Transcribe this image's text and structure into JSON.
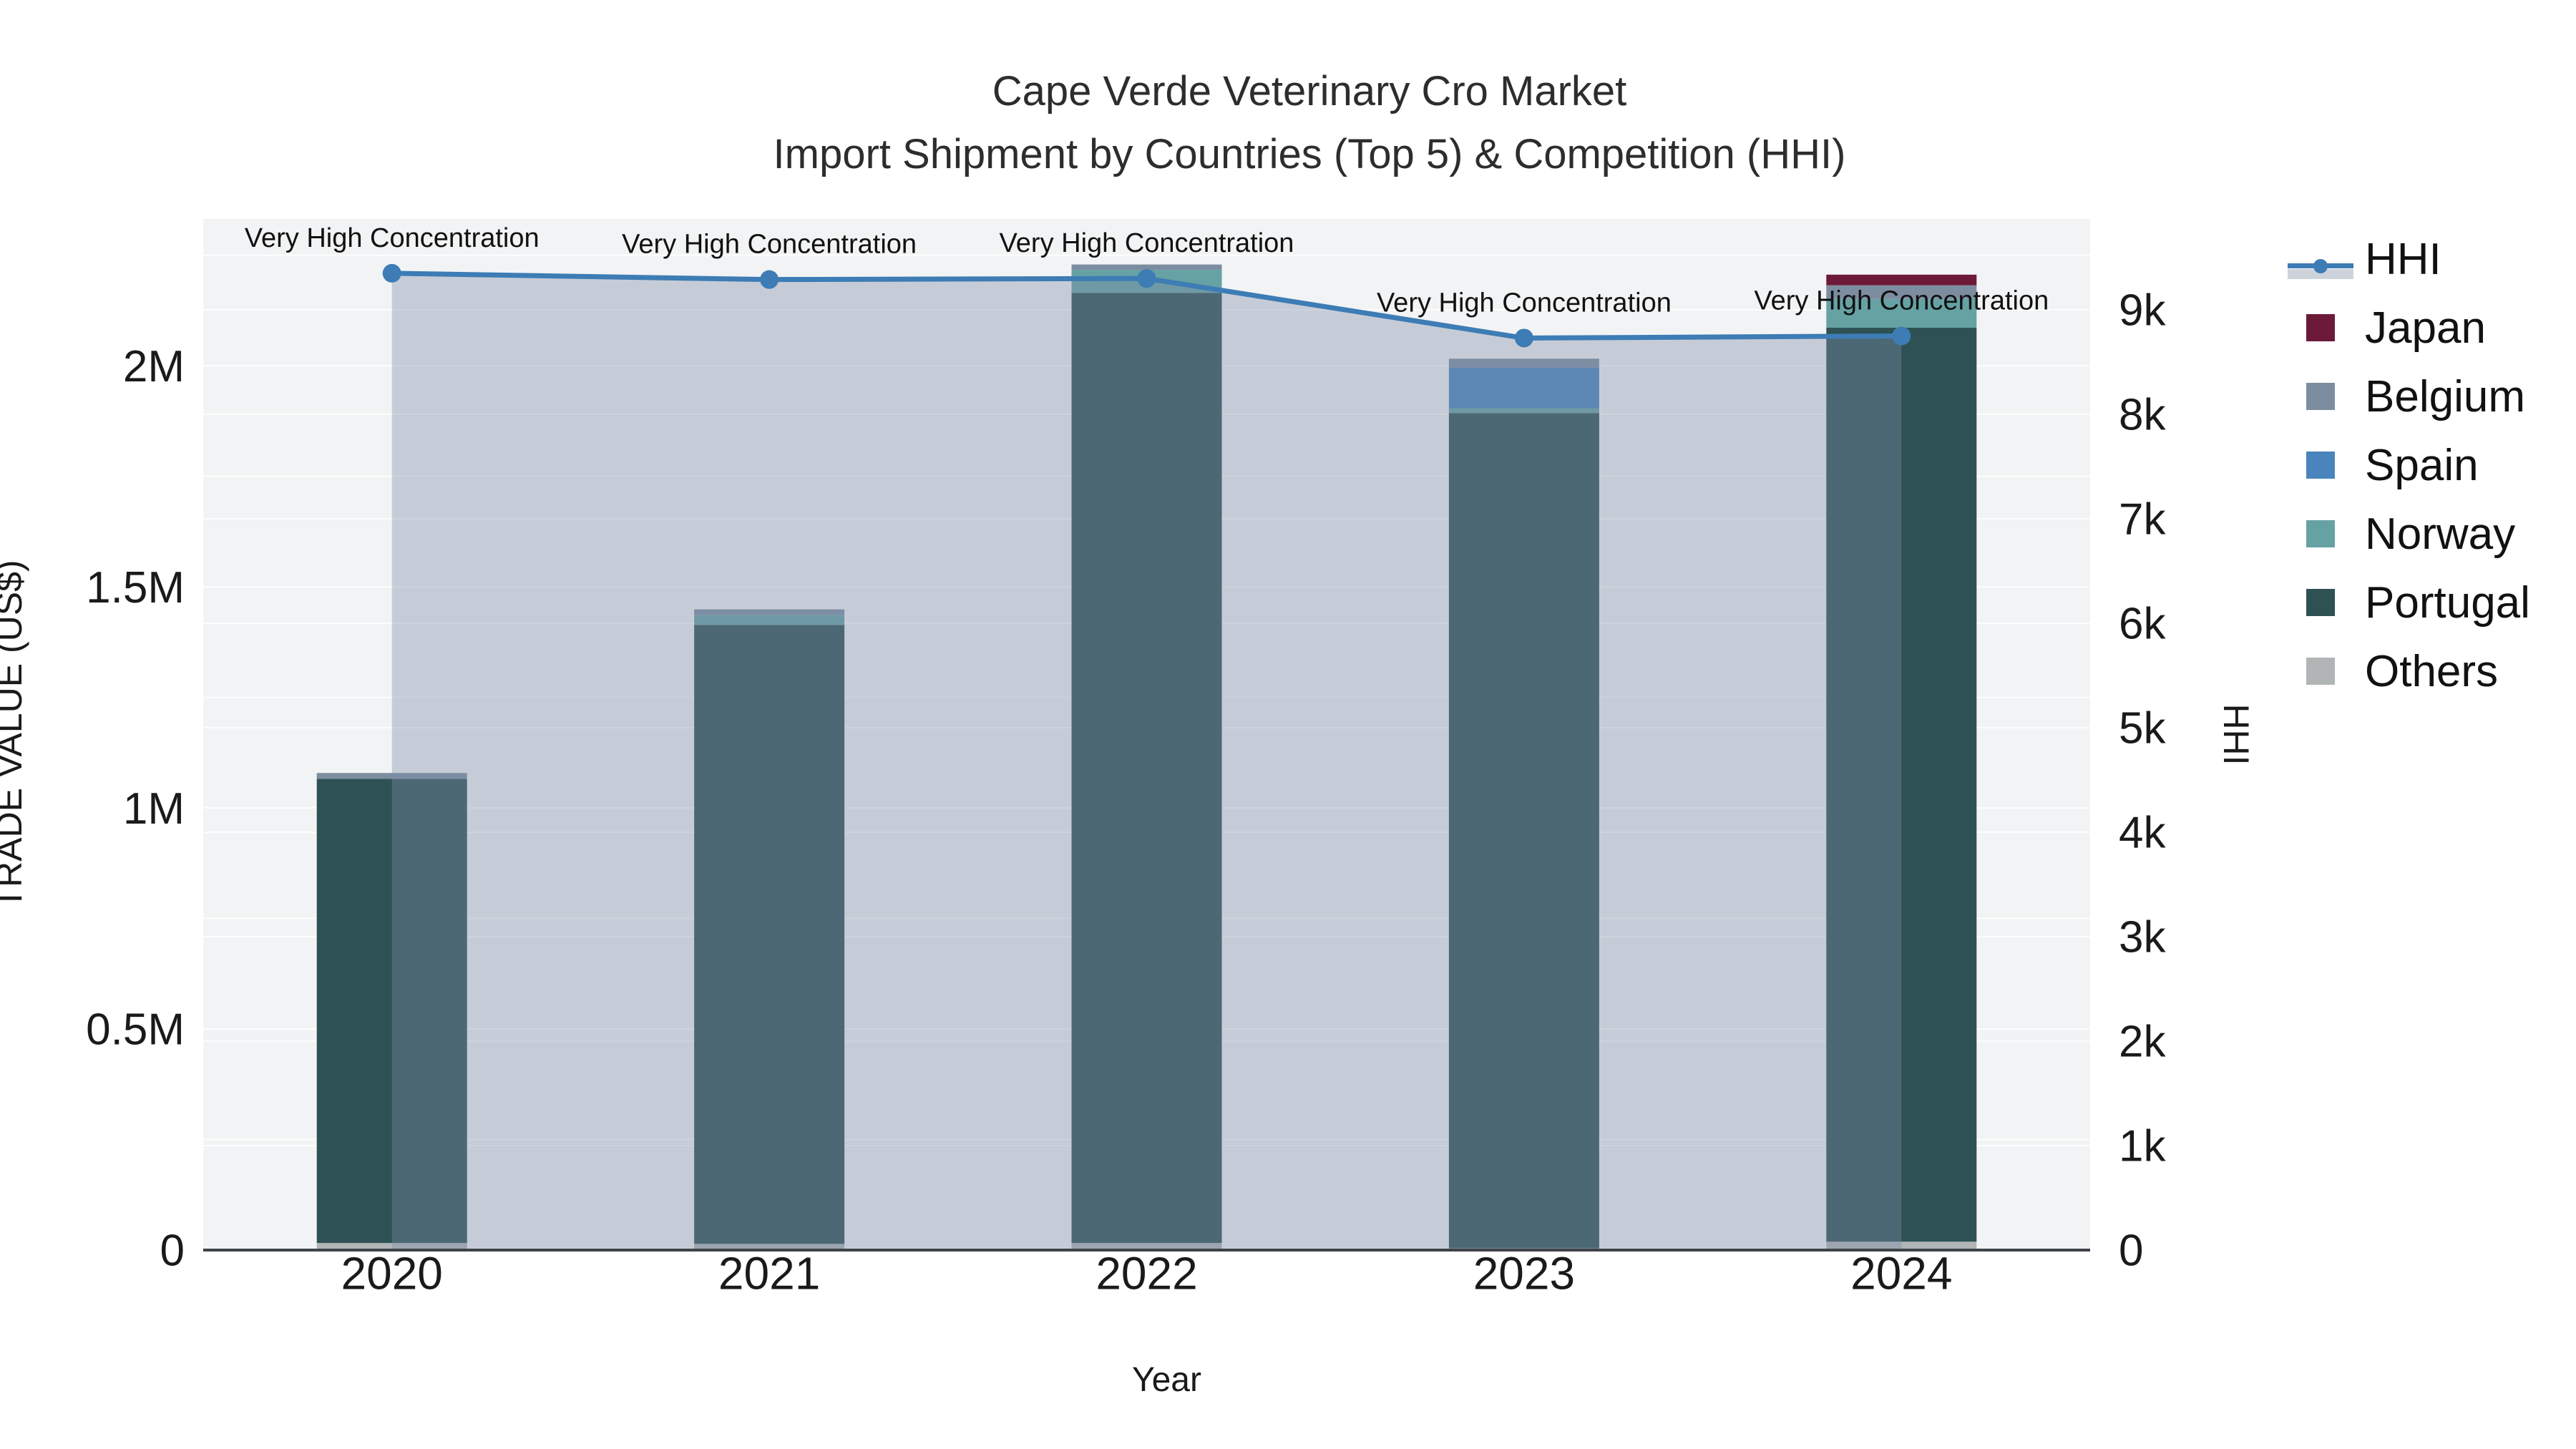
{
  "title": {
    "line1": "Cape Verde Veterinary Cro Market",
    "line2": "Import Shipment by Countries (Top 5) & Competition (HHI)"
  },
  "chart_data": {
    "type": "bar",
    "subtype": "stacked-bars-with-secondary-axis-line",
    "categories": [
      "2020",
      "2021",
      "2022",
      "2023",
      "2024"
    ],
    "xlabel": "Year",
    "ylabel_left": "TRADE VALUE (US$)",
    "ylabel_right": "HHI",
    "y_left_max": 2332000,
    "y_right_max": 9870,
    "y_left_ticks": [
      {
        "value": 0,
        "label": "0"
      },
      {
        "value": 500000,
        "label": "0.5M"
      },
      {
        "value": 1000000,
        "label": "1M"
      },
      {
        "value": 1500000,
        "label": "1.5M"
      },
      {
        "value": 2000000,
        "label": "2M"
      }
    ],
    "y_right_ticks": [
      {
        "value": 0,
        "label": "0"
      },
      {
        "value": 1000,
        "label": "1k"
      },
      {
        "value": 2000,
        "label": "2k"
      },
      {
        "value": 3000,
        "label": "3k"
      },
      {
        "value": 4000,
        "label": "4k"
      },
      {
        "value": 5000,
        "label": "5k"
      },
      {
        "value": 6000,
        "label": "6k"
      },
      {
        "value": 7000,
        "label": "7k"
      },
      {
        "value": 8000,
        "label": "8k"
      },
      {
        "value": 9000,
        "label": "9k"
      }
    ],
    "bar_series": [
      {
        "name": "Japan",
        "color": "#6d1a39",
        "values": [
          0,
          0,
          0,
          0,
          24000
        ]
      },
      {
        "name": "Belgium",
        "color": "#7d8da0",
        "values": [
          13000,
          13000,
          12000,
          20000,
          31000
        ]
      },
      {
        "name": "Spain",
        "color": "#4a84bc",
        "values": [
          0,
          0,
          0,
          92000,
          0
        ]
      },
      {
        "name": "Norway",
        "color": "#66a2a4",
        "values": [
          0,
          22000,
          52000,
          11000,
          65000
        ]
      },
      {
        "name": "Portugal",
        "color": "#2e5154",
        "values": [
          1050000,
          1400000,
          2149000,
          1889000,
          2067000
        ]
      },
      {
        "name": "Others",
        "color": "#b1b5b5",
        "values": [
          16000,
          14000,
          16000,
          4000,
          19000
        ]
      }
    ],
    "line_series": {
      "name": "HHI",
      "color": "#3d7cb5",
      "area_fill": "rgba(125,143,167,0.38)",
      "values": [
        9350,
        9290,
        9300,
        8730,
        8750
      ]
    },
    "annotations": [
      "Very High Concentration",
      "Very High Concentration",
      "Very High Concentration",
      "Very High Concentration",
      "Very High Concentration"
    ],
    "legend_order": [
      "HHI",
      "Japan",
      "Belgium",
      "Spain",
      "Norway",
      "Portugal",
      "Others"
    ]
  },
  "colors": {
    "plot_bg": "#f2f3f4",
    "grid": "#ffffff",
    "axis_line": "#3f444a",
    "tick_text": "#1a1a1a",
    "annotation_text": "#111111"
  }
}
